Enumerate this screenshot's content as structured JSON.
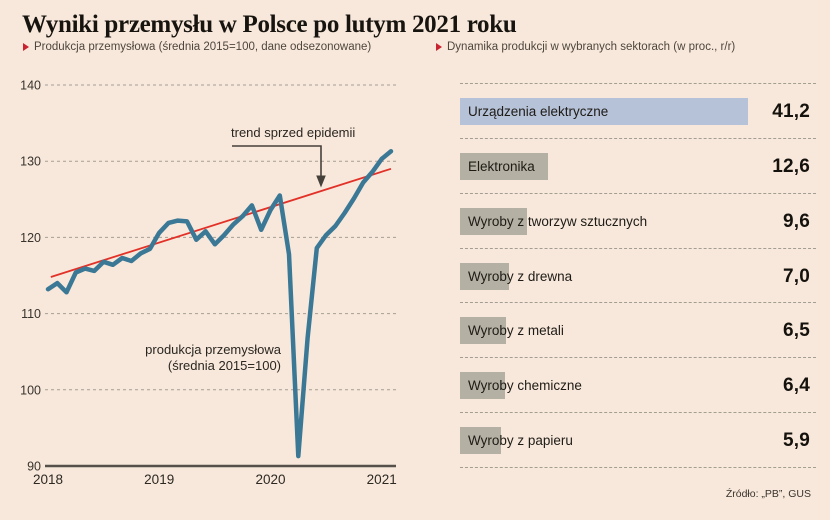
{
  "header": {
    "title": "Wyniki przemysłu w Polsce po lutym 2021 roku",
    "left_subtitle": "Produkcja przemysłowa (średnia 2015=100, dane odsezonowane)",
    "right_subtitle": "Dynamika produkcji w wybranych sektorach (w proc., r/r)",
    "accent_color": "#c92331"
  },
  "source": "Źródło: „PB”, GUS",
  "chart_data": [
    {
      "type": "line",
      "title": "Produkcja przemysłowa (średnia 2015=100, dane odsezonowane)",
      "x_ticks": [
        "2018",
        "2019",
        "2020",
        "2021"
      ],
      "y_ticks": [
        140,
        130,
        120,
        110,
        100,
        90
      ],
      "ylim": [
        90,
        140
      ],
      "frequency": "monthly",
      "grid": "dashed-horizontal",
      "series": [
        {
          "name": "produkcja przemysłowa (średnia 2015=100)",
          "color": "#3b7896",
          "values": [
            113.2,
            114.0,
            112.8,
            115.4,
            115.9,
            115.6,
            116.8,
            116.4,
            117.3,
            116.9,
            117.9,
            118.5,
            120.6,
            121.9,
            122.2,
            122.1,
            119.7,
            120.8,
            119.1,
            120.3,
            121.7,
            122.8,
            124.2,
            121.0,
            123.6,
            125.5,
            117.8,
            91.3,
            106.8,
            118.6,
            120.3,
            121.5,
            123.2,
            125.1,
            127.2,
            128.6,
            130.3,
            131.3
          ]
        }
      ],
      "trend": {
        "label": "trend sprzed epidemii",
        "color": "#e23128",
        "start_month": 0.3,
        "start_value": 114.8,
        "end_month": 37,
        "end_value": 129.0
      },
      "series_label_lines": [
        "produkcja przemysłowa",
        "(średnia 2015=100)"
      ]
    },
    {
      "type": "bar",
      "orientation": "horizontal",
      "title": "Dynamika produkcji w wybranych sektorach (w proc., r/r)",
      "unit": "proc., r/r",
      "bar_color": "#b4b0a3",
      "highlight_color": "#b6c2d8",
      "rows": [
        {
          "label": "Urządzenia elektryczne",
          "value": 41.2,
          "value_label": "41,2",
          "highlight": true
        },
        {
          "label": "Elektronika",
          "value": 12.6,
          "value_label": "12,6",
          "highlight": false
        },
        {
          "label": "Wyroby z tworzyw sztucznych",
          "value": 9.6,
          "value_label": "9,6",
          "highlight": false
        },
        {
          "label": "Wyroby z drewna",
          "value": 7.0,
          "value_label": "7,0",
          "highlight": false
        },
        {
          "label": "Wyroby z metali",
          "value": 6.5,
          "value_label": "6,5",
          "highlight": false
        },
        {
          "label": "Wyroby chemiczne",
          "value": 6.4,
          "value_label": "6,4",
          "highlight": false
        },
        {
          "label": "Wyroby z papieru",
          "value": 5.9,
          "value_label": "5,9",
          "highlight": false
        }
      ]
    }
  ]
}
